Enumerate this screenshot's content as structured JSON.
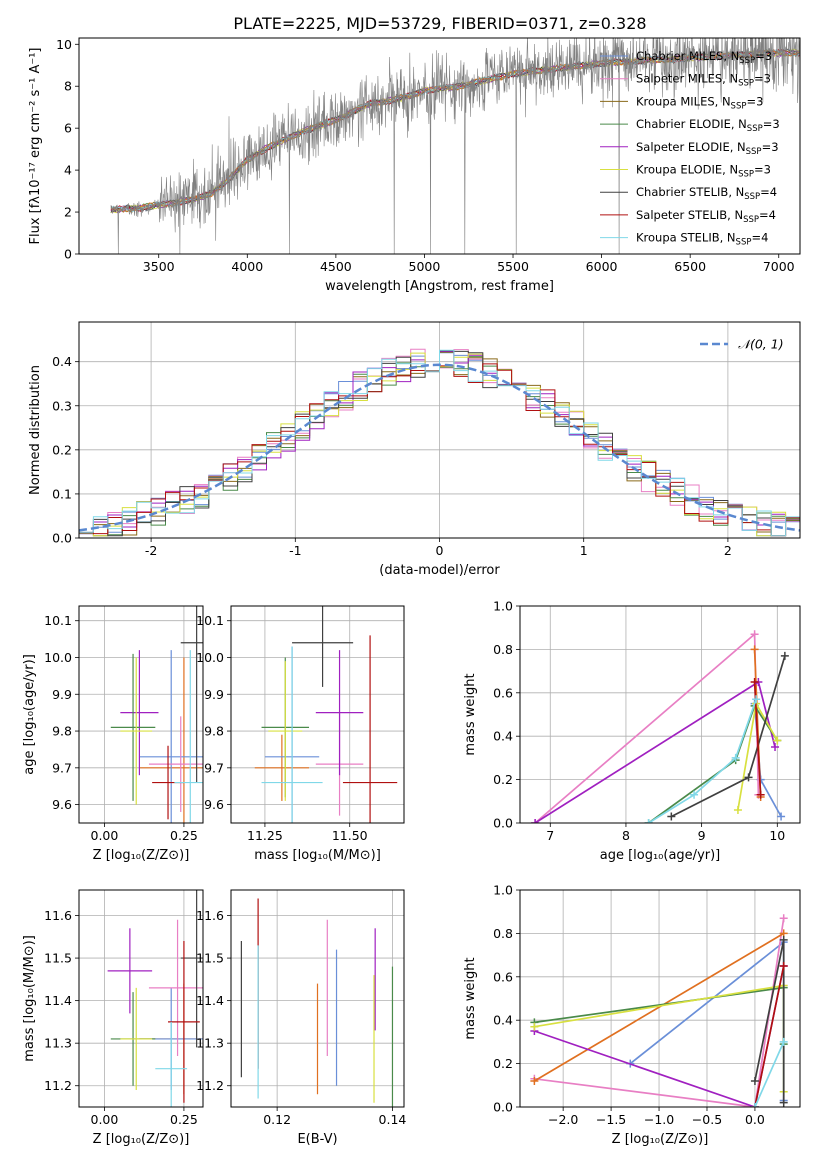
{
  "figure": {
    "title": "PLATE=2225, MJD=53729, FIBERID=0371, z=0.328"
  },
  "colors": {
    "Chabrier MILES": "#6a8fd8",
    "Salpeter MILES": "#e87fc4",
    "Kroupa MILES": "#8a6a1a",
    "Chabrier ELODIE": "#4a8a4a",
    "Salpeter ELODIE": "#a020c0",
    "Kroupa ELODIE": "#d8e040",
    "Chabrier STELIB": "#404040",
    "Salpeter STELIB": "#b01010",
    "Kroupa STELIB": "#80d8e8",
    "orange": "#e07020"
  },
  "chart_data": [
    {
      "id": "spectrum",
      "type": "line",
      "xlabel": "wavelength [Angstrom, rest frame]",
      "ylabel": "Flux [fλ10⁻¹⁷ erg cm⁻² s⁻¹ A⁻¹]",
      "xlim": [
        3050,
        7120
      ],
      "ylim": [
        0,
        10.3
      ],
      "xticks": [
        3500,
        4000,
        4500,
        5000,
        5500,
        6000,
        6500,
        7000
      ],
      "yticks": [
        0,
        2,
        4,
        6,
        8,
        10
      ],
      "legend_position": "top-right",
      "legend": [
        {
          "label": "Chabrier MILES, N",
          "sub": "SSP",
          "suffix": "=3",
          "color": "#6a8fd8"
        },
        {
          "label": "Salpeter MILES, N",
          "sub": "SSP",
          "suffix": "=3",
          "color": "#e87fc4"
        },
        {
          "label": "Kroupa MILES, N",
          "sub": "SSP",
          "suffix": "=3",
          "color": "#8a6a1a"
        },
        {
          "label": "Chabrier ELODIE, N",
          "sub": "SSP",
          "suffix": "=3",
          "color": "#4a8a4a"
        },
        {
          "label": "Salpeter ELODIE, N",
          "sub": "SSP",
          "suffix": "=3",
          "color": "#a020c0"
        },
        {
          "label": "Kroupa ELODIE, N",
          "sub": "SSP",
          "suffix": "=3",
          "color": "#d8e040"
        },
        {
          "label": "Chabrier STELIB, N",
          "sub": "SSP",
          "suffix": "=4",
          "color": "#404040"
        },
        {
          "label": "Salpeter STELIB, N",
          "sub": "SSP",
          "suffix": "=4",
          "color": "#b01010"
        },
        {
          "label": "Kroupa STELIB, N",
          "sub": "SSP",
          "suffix": "=4",
          "color": "#80d8e8"
        }
      ],
      "continuum": [
        [
          3230,
          2.1
        ],
        [
          3400,
          2.2
        ],
        [
          3550,
          2.4
        ],
        [
          3700,
          2.6
        ],
        [
          3800,
          2.9
        ],
        [
          3900,
          3.6
        ],
        [
          4000,
          4.5
        ],
        [
          4100,
          5.0
        ],
        [
          4200,
          5.4
        ],
        [
          4300,
          5.8
        ],
        [
          4400,
          6.1
        ],
        [
          4500,
          6.4
        ],
        [
          4600,
          6.8
        ],
        [
          4700,
          7.2
        ],
        [
          4800,
          7.3
        ],
        [
          4900,
          7.5
        ],
        [
          5000,
          7.8
        ],
        [
          5100,
          7.9
        ],
        [
          5200,
          8.0
        ],
        [
          5300,
          8.2
        ],
        [
          5400,
          8.4
        ],
        [
          5500,
          8.6
        ],
        [
          5600,
          8.7
        ],
        [
          5700,
          8.8
        ],
        [
          5800,
          8.9
        ],
        [
          5900,
          9.0
        ],
        [
          6000,
          9.1
        ],
        [
          6200,
          9.2
        ],
        [
          6400,
          9.3
        ],
        [
          6600,
          9.4
        ],
        [
          6800,
          9.5
        ],
        [
          7000,
          9.6
        ]
      ],
      "data_noise_sd": 0.75,
      "model_colors": [
        "#6a8fd8",
        "#e87fc4",
        "#8a6a1a",
        "#4a8a4a",
        "#a020c0",
        "#d8e040",
        "#404040",
        "#b01010",
        "#80d8e8",
        "#e07020"
      ]
    },
    {
      "id": "residuals",
      "type": "histogram",
      "xlabel": "(data-model)/error",
      "ylabel": "Normed distribution",
      "xlim": [
        -2.5,
        2.5
      ],
      "ylim": [
        0,
        0.49
      ],
      "xticks": [
        -2,
        -1,
        0,
        1,
        2
      ],
      "yticks": [
        0.0,
        0.1,
        0.2,
        0.3,
        0.4
      ],
      "grid": true,
      "legend_position": "top-right",
      "legend_label": "𝒩(0, 1)",
      "legend_color": "#5a88d0",
      "bin_width": 0.1,
      "colors": [
        "#6a8fd8",
        "#e87fc4",
        "#8a6a1a",
        "#4a8a4a",
        "#a020c0",
        "#d8e040",
        "#404040",
        "#b01010",
        "#80d8e8"
      ]
    },
    {
      "id": "age-Z",
      "type": "scatter",
      "xlabel": "Z [log₁₀(Z/Z⊙)]",
      "ylabel": "age  [log₁₀(age/yr)]",
      "xlim": [
        -0.08,
        0.31
      ],
      "ylim": [
        9.55,
        10.14
      ],
      "xticks": [
        0.0,
        0.25
      ],
      "xticklabels": [
        "0.00",
        "0.25"
      ],
      "yticks": [
        9.6,
        9.7,
        9.8,
        9.9,
        10.0,
        10.1
      ],
      "grid": true,
      "points": [
        {
          "x": 0.25,
          "y": 9.7,
          "xe": 0.14,
          "ye": 0.3,
          "color": "#e07020"
        },
        {
          "x": 0.21,
          "y": 9.73,
          "xe": 0.1,
          "ye": 0.29,
          "color": "#6a8fd8"
        },
        {
          "x": 0.24,
          "y": 9.71,
          "xe": 0.1,
          "ye": 0.13,
          "color": "#e87fc4"
        },
        {
          "x": 0.11,
          "y": 9.85,
          "xe": 0.06,
          "ye": 0.17,
          "color": "#a020c0"
        },
        {
          "x": 0.09,
          "y": 9.81,
          "xe": 0.07,
          "ye": 0.2,
          "color": "#4a8a4a"
        },
        {
          "x": 0.1,
          "y": 9.8,
          "xe": 0.05,
          "ye": 0.2,
          "color": "#d8e040"
        },
        {
          "x": 0.29,
          "y": 10.04,
          "xe": 0.05,
          "ye": 0.38,
          "color": "#404040"
        },
        {
          "x": 0.2,
          "y": 9.66,
          "xe": 0.05,
          "ye": 0.1,
          "color": "#b01010"
        },
        {
          "x": 0.27,
          "y": 9.66,
          "xe": 0.05,
          "ye": 0.36,
          "color": "#80d8e8"
        }
      ]
    },
    {
      "id": "age-mass",
      "type": "scatter",
      "xlabel": "mass [log₁₀(M/M⊙)]",
      "ylabel": "",
      "xlim": [
        11.15,
        11.66
      ],
      "ylim": [
        9.55,
        10.14
      ],
      "xticks": [
        11.25,
        11.5
      ],
      "xticklabels": [
        "11.25",
        "11.50"
      ],
      "yticks": [
        9.6,
        9.7,
        9.8,
        9.9,
        10.0,
        10.1
      ],
      "grid": true,
      "points": [
        {
          "x": 11.3,
          "y": 9.7,
          "xe": 0.08,
          "ye": 0.09,
          "color": "#e07020"
        },
        {
          "x": 11.33,
          "y": 9.73,
          "xe": 0.08,
          "ye": 0.3,
          "color": "#6a8fd8"
        },
        {
          "x": 11.47,
          "y": 9.71,
          "xe": 0.07,
          "ye": 0.14,
          "color": "#e87fc4"
        },
        {
          "x": 11.47,
          "y": 9.85,
          "xe": 0.07,
          "ye": 0.17,
          "color": "#a020c0"
        },
        {
          "x": 11.31,
          "y": 9.81,
          "xe": 0.07,
          "ye": 0.19,
          "color": "#4a8a4a"
        },
        {
          "x": 11.31,
          "y": 9.8,
          "xe": 0.05,
          "ye": 0.19,
          "color": "#d8e040"
        },
        {
          "x": 11.42,
          "y": 10.04,
          "xe": 0.09,
          "ye": 0.12,
          "color": "#404040"
        },
        {
          "x": 11.56,
          "y": 9.66,
          "xe": 0.08,
          "ye": 0.4,
          "color": "#b01010"
        },
        {
          "x": 11.33,
          "y": 9.66,
          "xe": 0.09,
          "ye": 0.37,
          "color": "#80d8e8"
        }
      ]
    },
    {
      "id": "weight-age",
      "type": "line",
      "xlabel": "age  [log₁₀(age/yr)]",
      "ylabel": "mass weight",
      "xlim": [
        6.6,
        10.3
      ],
      "ylim": [
        0,
        1
      ],
      "xticks": [
        7,
        8,
        9,
        10
      ],
      "yticks": [
        0.0,
        0.2,
        0.4,
        0.6,
        0.8,
        1.0
      ],
      "grid": true,
      "series": [
        {
          "color": "#6a8fd8",
          "points": [
            [
              10.05,
              0.03
            ],
            [
              9.78,
              0.2
            ],
            [
              9.7,
              0.55
            ]
          ]
        },
        {
          "color": "#e87fc4",
          "points": [
            [
              6.8,
              0.0
            ],
            [
              9.7,
              0.87
            ],
            [
              9.75,
              0.13
            ]
          ]
        },
        {
          "color": "#e07020",
          "points": [
            [
              9.7,
              0.8
            ],
            [
              9.78,
              0.12
            ]
          ]
        },
        {
          "color": "#a020c0",
          "points": [
            [
              6.8,
              0.0
            ],
            [
              9.75,
              0.65
            ],
            [
              9.97,
              0.35
            ]
          ]
        },
        {
          "color": "#4a8a4a",
          "points": [
            [
              8.3,
              0.0
            ],
            [
              9.45,
              0.29
            ],
            [
              9.7,
              0.54
            ],
            [
              10.0,
              0.38
            ]
          ]
        },
        {
          "color": "#d8e040",
          "points": [
            [
              9.48,
              0.06
            ],
            [
              9.72,
              0.55
            ],
            [
              10.0,
              0.38
            ]
          ]
        },
        {
          "color": "#404040",
          "points": [
            [
              8.6,
              0.03
            ],
            [
              9.62,
              0.21
            ],
            [
              10.1,
              0.77
            ]
          ]
        },
        {
          "color": "#b01010",
          "points": [
            [
              9.7,
              0.65
            ],
            [
              9.78,
              0.13
            ]
          ]
        },
        {
          "color": "#80d8e8",
          "points": [
            [
              8.3,
              0.0
            ],
            [
              8.9,
              0.13
            ],
            [
              9.45,
              0.3
            ],
            [
              9.72,
              0.57
            ]
          ]
        }
      ]
    },
    {
      "id": "mass-Z",
      "type": "scatter",
      "xlabel": "Z [log₁₀(Z/Z⊙)]",
      "ylabel": "mass [log₁₀(M/M⊙)]",
      "xlim": [
        -0.08,
        0.31
      ],
      "ylim": [
        11.15,
        11.66
      ],
      "xticks": [
        0.0,
        0.25
      ],
      "xticklabels": [
        "0.00",
        "0.25"
      ],
      "yticks": [
        11.2,
        11.3,
        11.4,
        11.5,
        11.6
      ],
      "grid": true,
      "points": [
        {
          "x": 0.25,
          "y": 11.31,
          "xe": 0.14,
          "ye": 0.13,
          "color": "#e07020"
        },
        {
          "x": 0.21,
          "y": 11.31,
          "xe": 0.1,
          "ye": 0.12,
          "color": "#6a8fd8"
        },
        {
          "x": 0.23,
          "y": 11.43,
          "xe": 0.09,
          "ye": 0.16,
          "color": "#e87fc4"
        },
        {
          "x": 0.08,
          "y": 11.47,
          "xe": 0.07,
          "ye": 0.1,
          "color": "#a020c0"
        },
        {
          "x": 0.09,
          "y": 11.31,
          "xe": 0.07,
          "ye": 0.11,
          "color": "#4a8a4a"
        },
        {
          "x": 0.1,
          "y": 11.31,
          "xe": 0.05,
          "ye": 0.12,
          "color": "#d8e040"
        },
        {
          "x": 0.29,
          "y": 11.5,
          "xe": 0.05,
          "ye": 0.21,
          "color": "#404040"
        },
        {
          "x": 0.25,
          "y": 11.35,
          "xe": 0.05,
          "ye": 0.19,
          "color": "#b01010"
        },
        {
          "x": 0.21,
          "y": 11.24,
          "xe": 0.05,
          "ye": 0.11,
          "color": "#80d8e8"
        }
      ]
    },
    {
      "id": "mass-EBV",
      "type": "scatter",
      "xlabel": "E(B-V)",
      "ylabel": "",
      "xlim": [
        0.112,
        0.142
      ],
      "ylim": [
        11.15,
        11.66
      ],
      "xticks": [
        0.12,
        0.14
      ],
      "xticklabels": [
        "0.12",
        "0.14"
      ],
      "yticks": [
        11.2,
        11.3,
        11.4,
        11.5,
        11.6
      ],
      "grid": true,
      "points": [
        {
          "x": 0.127,
          "y": 11.31,
          "xe": 0,
          "ye": 0.13,
          "color": "#e07020"
        },
        {
          "x": 0.1303,
          "y": 11.36,
          "xe": 0,
          "ye": 0.16,
          "color": "#6a8fd8"
        },
        {
          "x": 0.1287,
          "y": 11.43,
          "xe": 0,
          "ye": 0.16,
          "color": "#e87fc4"
        },
        {
          "x": 0.137,
          "y": 11.45,
          "xe": 0,
          "ye": 0.12,
          "color": "#a020c0"
        },
        {
          "x": 0.14,
          "y": 11.31,
          "xe": 0,
          "ye": 0.17,
          "color": "#4a8a4a"
        },
        {
          "x": 0.1368,
          "y": 11.31,
          "xe": 0,
          "ye": 0.15,
          "color": "#d8e040"
        },
        {
          "x": 0.1138,
          "y": 11.38,
          "xe": 0,
          "ye": 0.16,
          "color": "#404040"
        },
        {
          "x": 0.1167,
          "y": 11.44,
          "xe": 0,
          "ye": 0.2,
          "color": "#b01010"
        },
        {
          "x": 0.1167,
          "y": 11.35,
          "xe": 0,
          "ye": 0.18,
          "color": "#80d8e8"
        }
      ]
    },
    {
      "id": "weight-Z",
      "type": "line",
      "xlabel": "Z [log₁₀(Z/Z⊙)]",
      "ylabel": "mass weight",
      "xlim": [
        -2.45,
        0.47
      ],
      "ylim": [
        0,
        1
      ],
      "xticks": [
        -2.0,
        -1.5,
        -1.0,
        -0.5,
        0.0
      ],
      "xticklabels": [
        "−2.0",
        "−1.5",
        "−1.0",
        "−0.5",
        "0.0"
      ],
      "yticks": [
        0.0,
        0.2,
        0.4,
        0.6,
        0.8,
        1.0
      ],
      "grid": true,
      "series": [
        {
          "color": "#6a8fd8",
          "points": [
            [
              -1.3,
              0.2
            ],
            [
              0.3,
              0.76
            ],
            [
              0.3,
              0.03
            ]
          ]
        },
        {
          "color": "#e87fc4",
          "points": [
            [
              -2.3,
              0.13
            ],
            [
              0.0,
              0.0
            ],
            [
              0.3,
              0.87
            ]
          ]
        },
        {
          "color": "#e07020",
          "points": [
            [
              -2.3,
              0.12
            ],
            [
              0.3,
              0.8
            ]
          ]
        },
        {
          "color": "#a020c0",
          "points": [
            [
              -2.3,
              0.35
            ],
            [
              0.0,
              0.0
            ],
            [
              0.3,
              0.65
            ]
          ]
        },
        {
          "color": "#4a8a4a",
          "points": [
            [
              -2.3,
              0.39
            ],
            [
              0.3,
              0.55
            ],
            [
              0.3,
              0.29
            ]
          ]
        },
        {
          "color": "#d8e040",
          "points": [
            [
              -2.3,
              0.37
            ],
            [
              0.3,
              0.56
            ],
            [
              0.3,
              0.07
            ]
          ]
        },
        {
          "color": "#404040",
          "points": [
            [
              0.0,
              0.12
            ],
            [
              0.3,
              0.77
            ],
            [
              0.3,
              0.02
            ]
          ]
        },
        {
          "color": "#b01010",
          "points": [
            [
              0.0,
              0.0
            ],
            [
              0.3,
              0.65
            ]
          ]
        },
        {
          "color": "#80d8e8",
          "points": [
            [
              0.0,
              0.0
            ],
            [
              0.3,
              0.3
            ]
          ]
        }
      ]
    }
  ]
}
